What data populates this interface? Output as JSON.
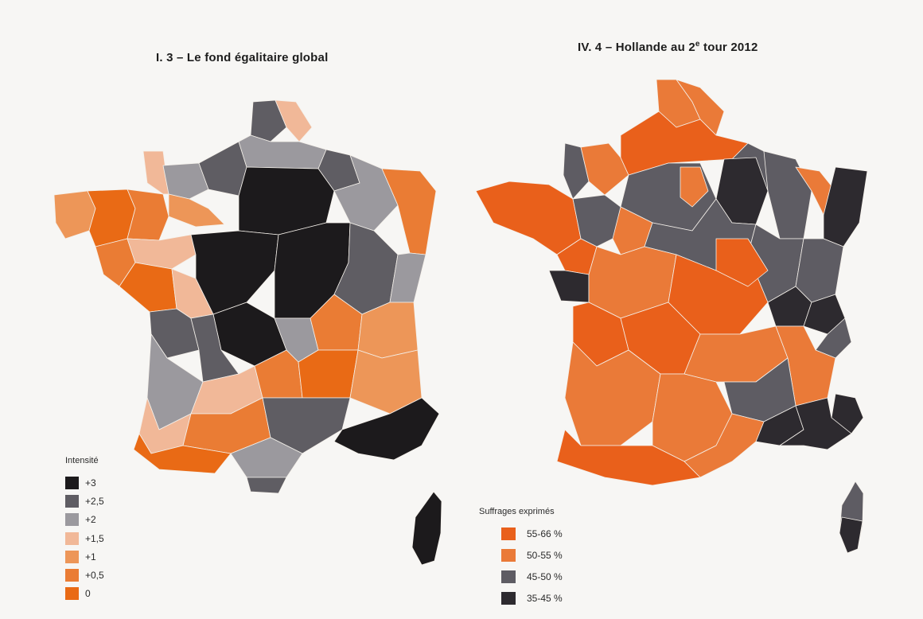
{
  "maps": {
    "left": {
      "title": "I. 3 – Le fond égalitaire global",
      "legend_title": "Intensité",
      "legend": [
        {
          "label": "+3",
          "color": "#1c1a1c"
        },
        {
          "label": "+2,5",
          "color": "#5f5d63"
        },
        {
          "label": "+2",
          "color": "#9b999e"
        },
        {
          "label": "+1,5",
          "color": "#f1b898"
        },
        {
          "label": "+1",
          "color": "#ed9658"
        },
        {
          "label": "+0,5",
          "color": "#ea7c34"
        },
        {
          "label": "0",
          "color": "#e96a15"
        }
      ]
    },
    "right": {
      "title": "IV. 4 – Hollande au 2e tour 2012",
      "legend_title": "Suffrages exprimés",
      "legend": [
        {
          "label": "55-66 %",
          "color": "#e9601b"
        },
        {
          "label": "50-55 %",
          "color": "#ea7a38"
        },
        {
          "label": "45-50 %",
          "color": "#5e5c63"
        },
        {
          "label": "35-45 %",
          "color": "#2d2a2f"
        }
      ]
    }
  },
  "colors": {
    "background": "#f7f6f4",
    "border": "#f4f0ea"
  }
}
